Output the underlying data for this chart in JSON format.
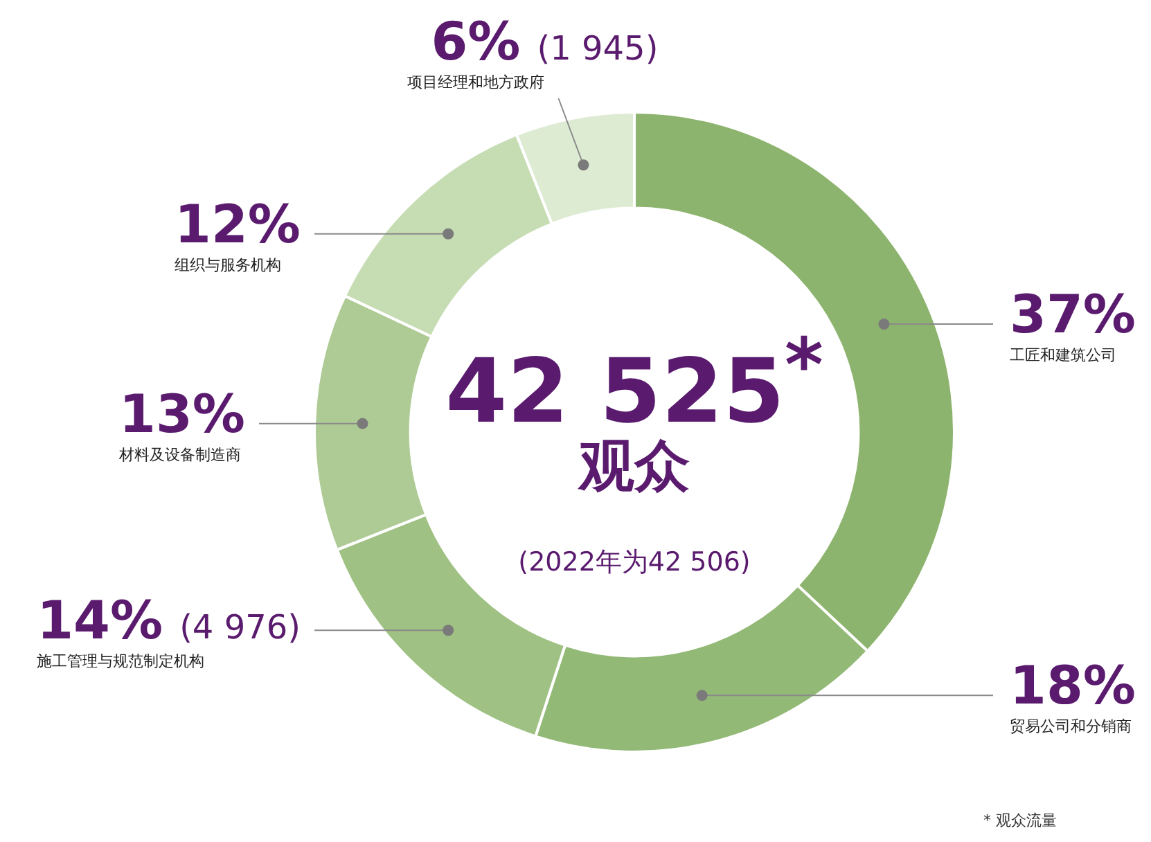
{
  "chart_data": {
    "type": "donut",
    "categories": [
      "工匠和建筑公司",
      "贸易公司和分销商",
      "施工管理与规范制定机构",
      "材料及设备制造商",
      "组织与服务机构",
      "项目经理和地方政府"
    ],
    "values": [
      37,
      18,
      14,
      13,
      12,
      6
    ],
    "colors": [
      "#8db46e",
      "#93b976",
      "#9fc183",
      "#aecb95",
      "#c6dcb3",
      "#deebd3"
    ],
    "value_labels": [
      "37%",
      "18%",
      "14% (4 976)",
      "13%",
      "12%",
      "6% (1 945)"
    ],
    "annotations": [
      "42 525$^{*}$",
      "观众",
      "(2022年为42 506)",
      "* 观众流量"
    ],
    "legend": false
  }
}
